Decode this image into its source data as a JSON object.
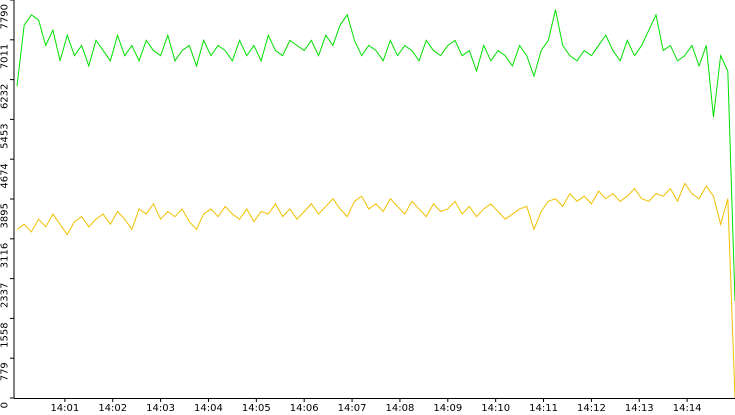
{
  "chart_data": {
    "type": "line",
    "xlim": [
      0,
      15
    ],
    "ylim": [
      0,
      7790
    ],
    "yticks": [
      0,
      779,
      1558,
      2337,
      3116,
      3895,
      4674,
      5453,
      6232,
      7011,
      7790
    ],
    "xticks": [
      {
        "value": 1,
        "label": "14:01"
      },
      {
        "value": 2,
        "label": "14:02"
      },
      {
        "value": 3,
        "label": "14:03"
      },
      {
        "value": 4,
        "label": "14:04"
      },
      {
        "value": 5,
        "label": "14:05"
      },
      {
        "value": 6,
        "label": "14:06"
      },
      {
        "value": 7,
        "label": "14:07"
      },
      {
        "value": 8,
        "label": "14:08"
      },
      {
        "value": 9,
        "label": "14:09"
      },
      {
        "value": 10,
        "label": "14:10"
      },
      {
        "value": 11,
        "label": "14:11"
      },
      {
        "value": 12,
        "label": "14:12"
      },
      {
        "value": 13,
        "label": "14:13"
      },
      {
        "value": 14,
        "label": "14:14"
      }
    ],
    "x": [
      0,
      0.15,
      0.3,
      0.45,
      0.6,
      0.75,
      0.9,
      1.05,
      1.2,
      1.35,
      1.5,
      1.65,
      1.8,
      1.95,
      2.1,
      2.25,
      2.4,
      2.55,
      2.7,
      2.85,
      3,
      3.15,
      3.3,
      3.45,
      3.6,
      3.75,
      3.9,
      4.05,
      4.2,
      4.35,
      4.5,
      4.65,
      4.8,
      4.95,
      5.1,
      5.25,
      5.4,
      5.55,
      5.7,
      5.85,
      6,
      6.15,
      6.3,
      6.45,
      6.6,
      6.75,
      6.9,
      7.05,
      7.2,
      7.35,
      7.5,
      7.65,
      7.8,
      7.95,
      8.1,
      8.25,
      8.4,
      8.55,
      8.7,
      8.85,
      9,
      9.15,
      9.3,
      9.45,
      9.6,
      9.75,
      9.9,
      10.05,
      10.2,
      10.35,
      10.5,
      10.65,
      10.8,
      10.95,
      11.1,
      11.25,
      11.4,
      11.55,
      11.7,
      11.85,
      12,
      12.15,
      12.3,
      12.45,
      12.6,
      12.75,
      12.9,
      13.05,
      13.2,
      13.35,
      13.5,
      13.65,
      13.8,
      13.95,
      14.1,
      14.25,
      14.4,
      14.55,
      14.7,
      14.85,
      15
    ],
    "series": [
      {
        "color": "#00e000",
        "values": [
          6100,
          7300,
          7500,
          7400,
          6900,
          7200,
          6600,
          7100,
          6700,
          6900,
          6500,
          7000,
          6800,
          6600,
          7100,
          6700,
          6900,
          6600,
          7000,
          6800,
          6700,
          7100,
          6600,
          6800,
          6900,
          6500,
          7000,
          6700,
          6900,
          6800,
          6600,
          7000,
          6700,
          6900,
          6600,
          7100,
          6800,
          6700,
          7000,
          6900,
          6800,
          7000,
          6700,
          7100,
          6900,
          7300,
          7500,
          7000,
          6700,
          6900,
          6800,
          6600,
          7000,
          6700,
          6900,
          6800,
          6600,
          7000,
          6800,
          6700,
          6900,
          7000,
          6700,
          6800,
          6400,
          6900,
          6600,
          6800,
          6700,
          6500,
          6900,
          6700,
          6300,
          6800,
          7000,
          7600,
          6900,
          6700,
          6600,
          6800,
          6700,
          6900,
          7100,
          6800,
          6600,
          7000,
          6700,
          6900,
          7200,
          7500,
          6800,
          6900,
          6600,
          6700,
          6900,
          6500,
          6900,
          5500,
          6700,
          6400,
          1900
        ]
      },
      {
        "color": "#f0c000",
        "values": [
          3300,
          3400,
          3250,
          3500,
          3350,
          3600,
          3400,
          3200,
          3450,
          3550,
          3350,
          3500,
          3600,
          3400,
          3650,
          3500,
          3300,
          3700,
          3600,
          3800,
          3500,
          3650,
          3550,
          3700,
          3450,
          3300,
          3600,
          3700,
          3550,
          3750,
          3600,
          3500,
          3700,
          3450,
          3650,
          3600,
          3800,
          3550,
          3700,
          3500,
          3650,
          3800,
          3600,
          3750,
          3900,
          3700,
          3550,
          3850,
          3950,
          3700,
          3800,
          3650,
          3900,
          3750,
          3600,
          3850,
          3700,
          3550,
          3800,
          3650,
          3700,
          3850,
          3600,
          3750,
          3550,
          3700,
          3800,
          3650,
          3500,
          3600,
          3700,
          3750,
          3300,
          3650,
          3850,
          3900,
          3750,
          4000,
          3850,
          3950,
          3800,
          4050,
          3900,
          4000,
          3850,
          3950,
          4100,
          3900,
          3850,
          4000,
          3950,
          4100,
          3850,
          4200,
          4000,
          3900,
          4150,
          3950,
          3400,
          3900,
          0
        ]
      }
    ]
  }
}
